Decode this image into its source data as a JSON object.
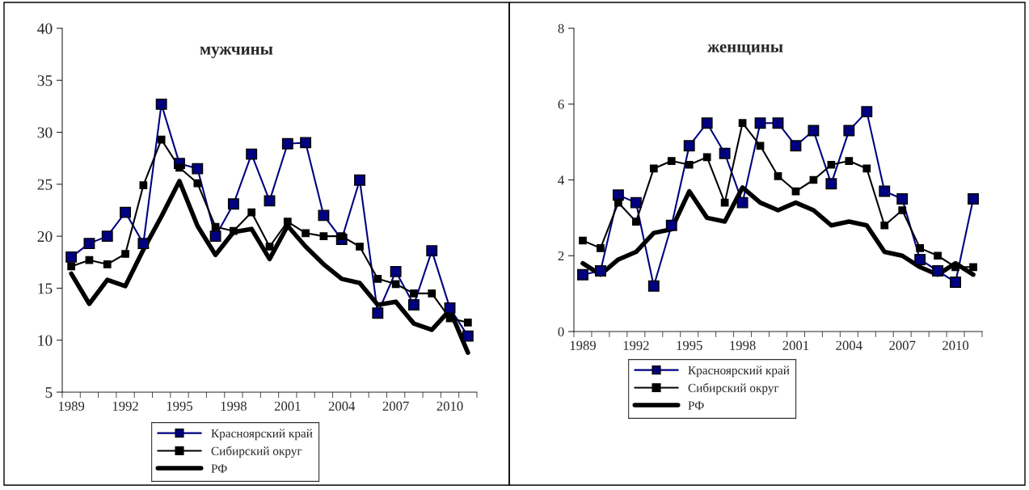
{
  "chart_data": [
    {
      "type": "line",
      "title": "мужчины",
      "categories": [
        "1989",
        null,
        null,
        "1992",
        null,
        null,
        "1995",
        null,
        null,
        "1998",
        null,
        null,
        "2001",
        null,
        null,
        "2004",
        null,
        null,
        "2007",
        null,
        null,
        "2010",
        null
      ],
      "series": [
        {
          "name": "Красноярский край",
          "color": "#000080",
          "marker": "square",
          "values": [
            18.0,
            19.3,
            20.0,
            22.3,
            19.3,
            32.7,
            27.0,
            26.5,
            20.0,
            23.1,
            27.9,
            23.4,
            28.9,
            29.0,
            22.0,
            19.7,
            25.4,
            12.6,
            16.6,
            13.4,
            18.6,
            13.1,
            10.4
          ]
        },
        {
          "name": "Сибирский округ",
          "color": "#000000",
          "marker": "square",
          "values": [
            17.1,
            17.7,
            17.3,
            18.3,
            24.9,
            29.3,
            26.6,
            25.1,
            20.9,
            20.5,
            22.3,
            19.0,
            21.4,
            20.3,
            20.0,
            20.0,
            19.0,
            15.9,
            15.4,
            14.5,
            14.5,
            12.1,
            11.7
          ]
        },
        {
          "name": "РФ",
          "color": "#000000",
          "marker": "none",
          "values": [
            16.4,
            13.5,
            15.8,
            15.2,
            18.7,
            21.9,
            25.3,
            21.0,
            18.2,
            20.4,
            20.7,
            17.8,
            21.0,
            19.0,
            17.3,
            15.9,
            15.5,
            13.4,
            13.7,
            11.6,
            11.0,
            12.9,
            8.8
          ]
        }
      ],
      "ylim": [
        5,
        40
      ],
      "yticks": [
        5,
        10,
        15,
        20,
        25,
        30,
        35,
        40
      ],
      "grid": false,
      "legend": "bottom"
    },
    {
      "type": "line",
      "title": "женщины",
      "categories": [
        "1989",
        null,
        null,
        "1992",
        null,
        null,
        "1995",
        null,
        null,
        "1998",
        null,
        null,
        "2001",
        null,
        null,
        "2004",
        null,
        null,
        "2007",
        null,
        null,
        "2010",
        null
      ],
      "series": [
        {
          "name": "Красноярский край",
          "color": "#000080",
          "marker": "square",
          "values": [
            1.5,
            1.6,
            3.6,
            3.4,
            1.2,
            2.8,
            4.9,
            5.5,
            4.7,
            3.4,
            5.5,
            5.5,
            4.9,
            5.3,
            3.9,
            5.3,
            5.8,
            3.7,
            3.5,
            1.9,
            1.6,
            1.3,
            3.5
          ]
        },
        {
          "name": "Сибирский округ",
          "color": "#000000",
          "marker": "square",
          "values": [
            2.4,
            2.2,
            3.4,
            2.9,
            4.3,
            4.5,
            4.4,
            4.6,
            3.4,
            5.5,
            4.9,
            4.1,
            3.7,
            4.0,
            4.4,
            4.5,
            4.3,
            2.8,
            3.2,
            2.2,
            2.0,
            1.7,
            1.7
          ]
        },
        {
          "name": "РФ",
          "color": "#000000",
          "marker": "none",
          "values": [
            1.8,
            1.5,
            1.9,
            2.1,
            2.6,
            2.7,
            3.7,
            3.0,
            2.9,
            3.8,
            3.4,
            3.2,
            3.4,
            3.2,
            2.8,
            2.9,
            2.8,
            2.1,
            2.0,
            1.7,
            1.5,
            1.8,
            1.5
          ]
        }
      ],
      "ylim": [
        0,
        8
      ],
      "yticks": [
        0,
        2,
        4,
        6,
        8
      ],
      "grid": false,
      "legend": "bottom"
    }
  ]
}
